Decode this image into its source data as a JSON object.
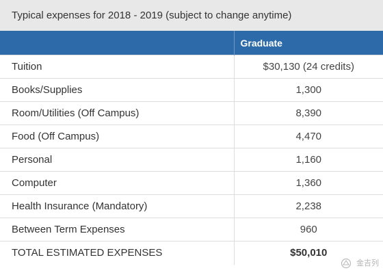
{
  "table": {
    "caption": "Typical expenses for 2018 - 2019 (subject to change anytime)",
    "header": {
      "label_column": "",
      "graduate_column": "Graduate"
    },
    "rows": [
      {
        "label": "Tuition",
        "value": "$30,130 (24 credits)"
      },
      {
        "label": "Books/Supplies",
        "value": "1,300"
      },
      {
        "label": "Room/Utilities (Off Campus)",
        "value": "8,390"
      },
      {
        "label": "Food (Off Campus)",
        "value": "4,470"
      },
      {
        "label": "Personal",
        "value": "1,160"
      },
      {
        "label": "Computer",
        "value": "1,360"
      },
      {
        "label": "Health Insurance (Mandatory)",
        "value": "2,238"
      },
      {
        "label": "Between Term Expenses",
        "value": "960"
      }
    ],
    "total": {
      "label": "TOTAL ESTIMATED EXPENSES",
      "value": "$50,010"
    }
  },
  "watermark": {
    "text": "金吉列",
    "icon": "watermark-logo-icon"
  },
  "colors": {
    "header_bg": "#2c6aa9",
    "caption_bg": "#e8e8e8",
    "grid_line": "#dcdcdc"
  }
}
